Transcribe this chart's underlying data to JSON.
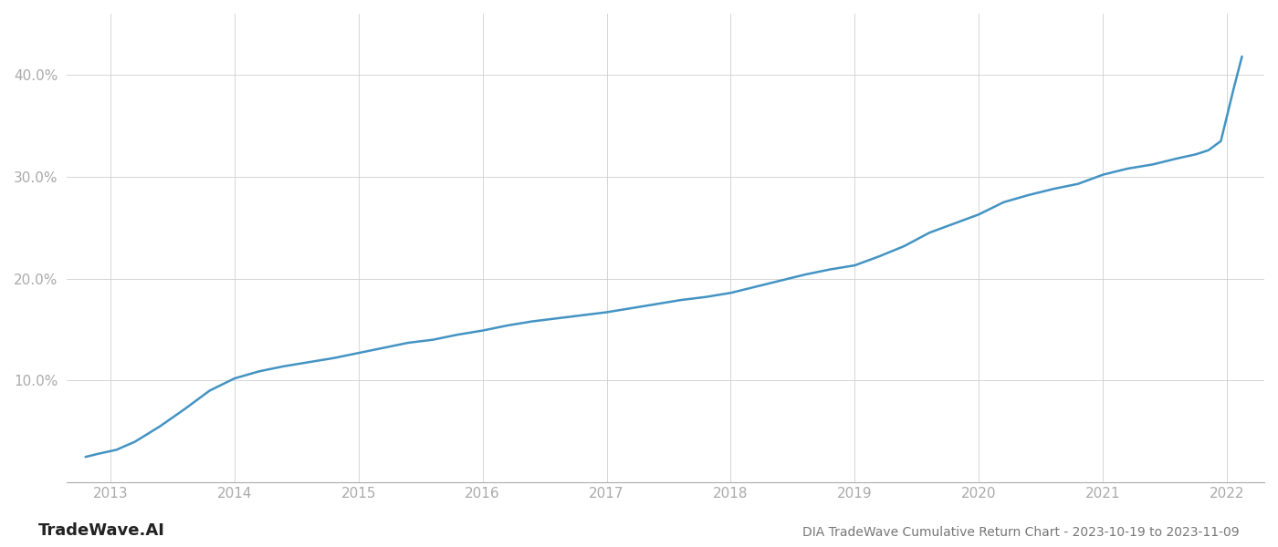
{
  "title": "DIA TradeWave Cumulative Return Chart - 2023-10-19 to 2023-11-09",
  "watermark": "TradeWave.AI",
  "line_color": "#4393c3",
  "background_color": "#ffffff",
  "grid_color": "#d0d0d0",
  "x_years": [
    2013,
    2014,
    2015,
    2016,
    2017,
    2018,
    2019,
    2020,
    2021,
    2022
  ],
  "x_data": [
    2012.8,
    2012.9,
    2013.05,
    2013.2,
    2013.4,
    2013.6,
    2013.8,
    2014.0,
    2014.2,
    2014.4,
    2014.6,
    2014.8,
    2015.0,
    2015.2,
    2015.4,
    2015.6,
    2015.8,
    2016.0,
    2016.2,
    2016.4,
    2016.6,
    2016.8,
    2017.0,
    2017.2,
    2017.4,
    2017.6,
    2017.8,
    2018.0,
    2018.2,
    2018.4,
    2018.6,
    2018.8,
    2019.0,
    2019.2,
    2019.4,
    2019.6,
    2019.8,
    2020.0,
    2020.2,
    2020.4,
    2020.6,
    2020.8,
    2021.0,
    2021.2,
    2021.4,
    2021.6,
    2021.75,
    2021.85,
    2021.95,
    2022.05,
    2022.12
  ],
  "y_data": [
    2.5,
    2.8,
    3.2,
    4.0,
    5.5,
    7.2,
    9.0,
    10.2,
    10.9,
    11.4,
    11.8,
    12.2,
    12.7,
    13.2,
    13.7,
    14.0,
    14.5,
    14.9,
    15.4,
    15.8,
    16.1,
    16.4,
    16.7,
    17.1,
    17.5,
    17.9,
    18.2,
    18.6,
    19.2,
    19.8,
    20.4,
    20.9,
    21.3,
    22.2,
    23.2,
    24.5,
    25.4,
    26.3,
    27.5,
    28.2,
    28.8,
    29.3,
    30.2,
    30.8,
    31.2,
    31.8,
    32.2,
    32.6,
    33.5,
    38.5,
    41.8
  ],
  "yticks": [
    10.0,
    20.0,
    30.0,
    40.0
  ],
  "xlim": [
    2012.65,
    2022.3
  ],
  "ylim": [
    0,
    46
  ],
  "title_fontsize": 10,
  "tick_fontsize": 11,
  "watermark_fontsize": 13,
  "line_width": 1.8,
  "axis_label_color": "#aaaaaa",
  "title_color": "#777777"
}
